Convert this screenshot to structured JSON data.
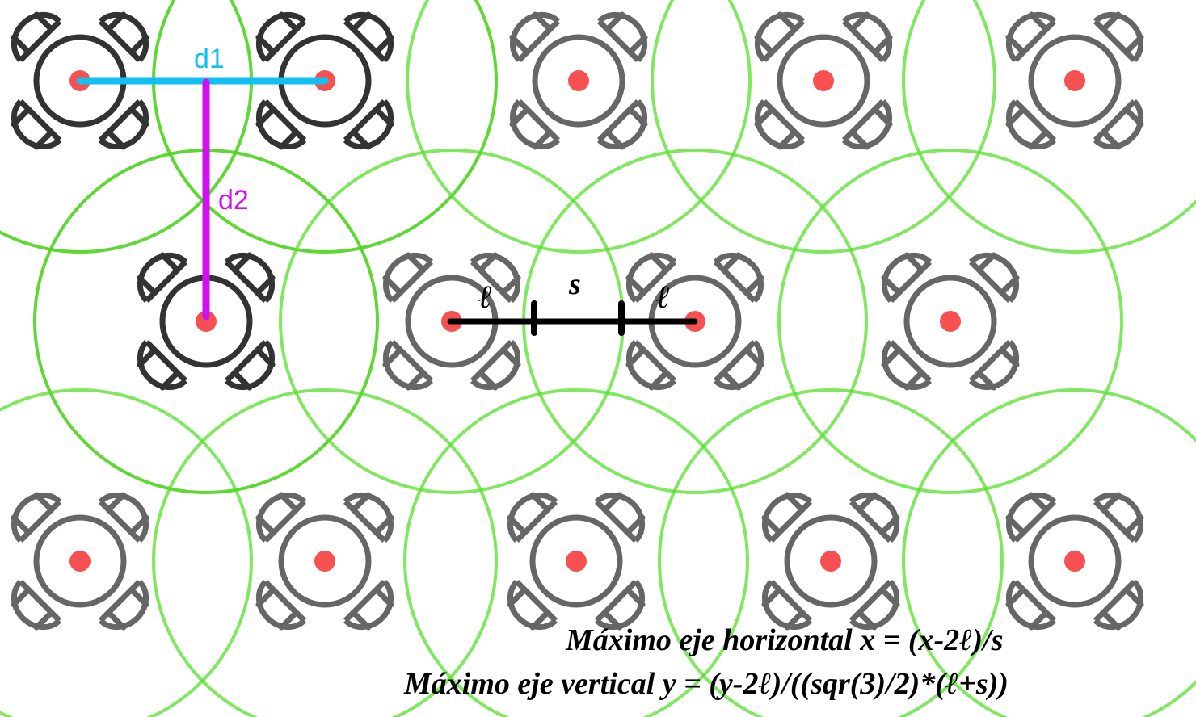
{
  "colors": {
    "circle": "#55e02a",
    "circle_dark": "#4cd41c",
    "drone_dark": "#333333",
    "drone_light": "#666666",
    "center_dot": "#f75050",
    "d1_line": "#10c0f0",
    "d2_line": "#d010f0",
    "measure_line": "#000000"
  },
  "labels": {
    "d1": "d1",
    "d2": "d2",
    "l_left": "ℓ",
    "s": "s",
    "l_right": "ℓ"
  },
  "formulas": {
    "horizontal": "Máximo eje horizontal x = (x-2ℓ)/s",
    "vertical": "Máximo eje vertical y = (y-2ℓ)/((sqr(3)/2)*(ℓ+s))"
  },
  "drones": [
    {
      "row": 1,
      "col": 1,
      "highlighted": true
    },
    {
      "row": 1,
      "col": 2,
      "highlighted": true
    },
    {
      "row": 1,
      "col": 3,
      "highlighted": false
    },
    {
      "row": 1,
      "col": 4,
      "highlighted": false
    },
    {
      "row": 1,
      "col": 5,
      "highlighted": false
    },
    {
      "row": 2,
      "col": 1,
      "highlighted": true
    },
    {
      "row": 2,
      "col": 2,
      "highlighted": false
    },
    {
      "row": 2,
      "col": 3,
      "highlighted": false
    },
    {
      "row": 2,
      "col": 4,
      "highlighted": false
    },
    {
      "row": 3,
      "col": 1,
      "highlighted": false
    },
    {
      "row": 3,
      "col": 2,
      "highlighted": false
    },
    {
      "row": 3,
      "col": 3,
      "highlighted": false
    },
    {
      "row": 3,
      "col": 4,
      "highlighted": false
    },
    {
      "row": 3,
      "col": 5,
      "highlighted": false
    }
  ]
}
